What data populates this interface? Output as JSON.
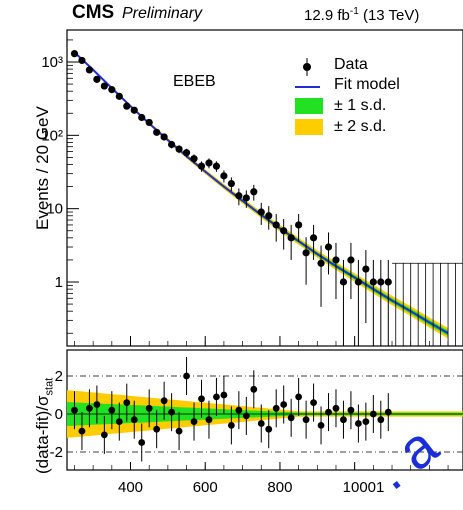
{
  "header": {
    "experiment": "CMS",
    "status": "Preliminary",
    "lumi_main": "12.9 fb",
    "lumi_exp": "-1",
    "energy": " (13 TeV)"
  },
  "category_label": "EBEB",
  "legend": {
    "data": "Data",
    "fit": "Fit model",
    "sd1": "± 1 s.d.",
    "sd2": "± 2 s.d."
  },
  "colors": {
    "fit": "#1f2fd6",
    "band1": "#22e022",
    "band2": "#ffcc00",
    "watermark": "#1a2fd8"
  },
  "watermark_text": ". a",
  "chart_data": [
    {
      "type": "scatter",
      "panel": "main",
      "ylabel": "Events / 20 GeV",
      "yscale": "log",
      "ylim": [
        0.15,
        2000
      ],
      "xlim": [
        230,
        1290
      ],
      "y_ticks": [
        "10³",
        "10²",
        "10",
        "1"
      ],
      "series": [
        {
          "name": "Data",
          "x": [
            250,
            270,
            290,
            310,
            330,
            350,
            370,
            390,
            410,
            430,
            450,
            470,
            490,
            510,
            530,
            550,
            570,
            590,
            610,
            630,
            650,
            670,
            690,
            710,
            730,
            750,
            770,
            790,
            810,
            830,
            850,
            870,
            890,
            910,
            930,
            950,
            970,
            990,
            1010,
            1030,
            1050,
            1070,
            1090
          ],
          "y": [
            1300,
            1050,
            780,
            580,
            470,
            420,
            340,
            250,
            220,
            175,
            150,
            110,
            95,
            75,
            65,
            58,
            48,
            38,
            42,
            38,
            28,
            22,
            15,
            14,
            17,
            9,
            8,
            6,
            5,
            4,
            6,
            2.5,
            4,
            1.8,
            3,
            2,
            1,
            2,
            1,
            1.5,
            1,
            1,
            1
          ]
        },
        {
          "name": "Fit model",
          "x": [
            250,
            300,
            350,
            400,
            450,
            500,
            550,
            600,
            650,
            700,
            750,
            800,
            850,
            900,
            950,
            1000,
            1050,
            1100,
            1150,
            1200,
            1250
          ],
          "y": [
            1350,
            780,
            440,
            250,
            145,
            86,
            52,
            32,
            20,
            12.8,
            8.2,
            5.4,
            3.6,
            2.4,
            1.65,
            1.15,
            0.8,
            0.56,
            0.4,
            0.28,
            0.2
          ]
        }
      ]
    },
    {
      "type": "scatter",
      "panel": "ratio",
      "ylabel": "(data-fit)/σ",
      "ylabel_sub": "stat",
      "ylim": [
        -3,
        3
      ],
      "xlim": [
        230,
        1290
      ],
      "x_ticks": [
        "400",
        "600",
        "800",
        "10001"
      ],
      "y_ticks": [
        "2",
        "0",
        "-2"
      ],
      "series": [
        {
          "name": "Pull",
          "x": [
            250,
            270,
            290,
            310,
            330,
            350,
            370,
            390,
            410,
            430,
            450,
            470,
            490,
            510,
            530,
            550,
            570,
            590,
            610,
            630,
            650,
            670,
            690,
            710,
            730,
            750,
            770,
            790,
            810,
            830,
            850,
            870,
            890,
            910,
            930,
            950,
            970,
            990,
            1010,
            1030,
            1050,
            1070,
            1090
          ],
          "y": [
            0.2,
            -0.9,
            0.3,
            0.5,
            -1.1,
            0.2,
            -0.4,
            0.6,
            -0.3,
            -1.5,
            0.3,
            -0.8,
            0.7,
            0.1,
            -0.9,
            2.0,
            -0.4,
            0.8,
            -0.3,
            0.9,
            1.0,
            -0.6,
            0.2,
            -0.1,
            1.3,
            -0.5,
            -0.8,
            0.3,
            0.5,
            -0.2,
            0.9,
            -0.3,
            0.6,
            -0.6,
            0.1,
            0.3,
            -0.3,
            0.2,
            -0.5,
            -0.4,
            0.0,
            -0.3,
            0.1
          ]
        }
      ]
    }
  ]
}
